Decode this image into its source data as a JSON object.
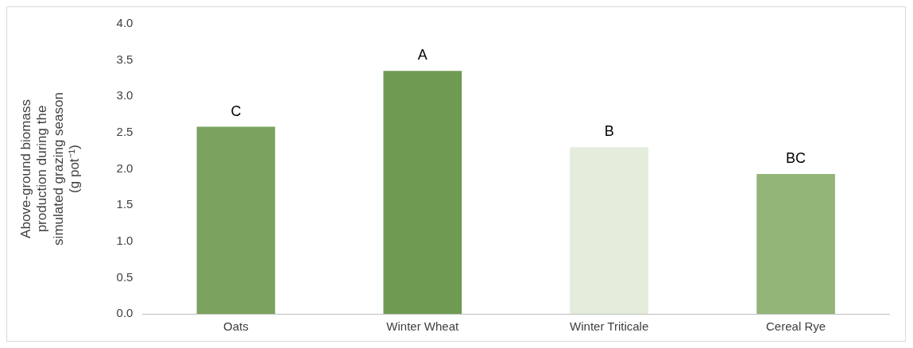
{
  "chart_data": {
    "type": "bar",
    "ylabel": "Above-ground biomass production during the simulated grazing season (g pot⁻¹)",
    "categories": [
      "Oats",
      "Winter Wheat",
      "Winter Triticale",
      "Cereal Rye"
    ],
    "values": [
      2.58,
      3.35,
      2.3,
      1.93
    ],
    "colors": [
      "#7ba35f",
      "#6f9a52",
      "#e4ecdc",
      "#93b577"
    ],
    "ylim": [
      0,
      4
    ],
    "yticks": [
      {
        "value": 0,
        "label": "0.0"
      },
      {
        "value": 0.5,
        "label": "0.5"
      },
      {
        "value": 1,
        "label": "1.0"
      },
      {
        "value": 1.5,
        "label": "1.5"
      },
      {
        "value": 2,
        "label": "2.0"
      },
      {
        "value": 2.5,
        "label": "2.5"
      },
      {
        "value": 3,
        "label": "3.0"
      },
      {
        "value": 3.5,
        "label": "3.5"
      },
      {
        "value": 4,
        "label": "4.0"
      }
    ],
    "grid": false,
    "legend": false,
    "annotations": [
      {
        "text": "C",
        "x": "Oats",
        "y": 2.58
      },
      {
        "text": "A",
        "x": "Winter Wheat",
        "y": 3.35
      },
      {
        "text": "B",
        "x": "Winter Triticale",
        "y": 2.3
      },
      {
        "text": "BC",
        "x": "Cereal Rye",
        "y": 1.93
      }
    ]
  }
}
